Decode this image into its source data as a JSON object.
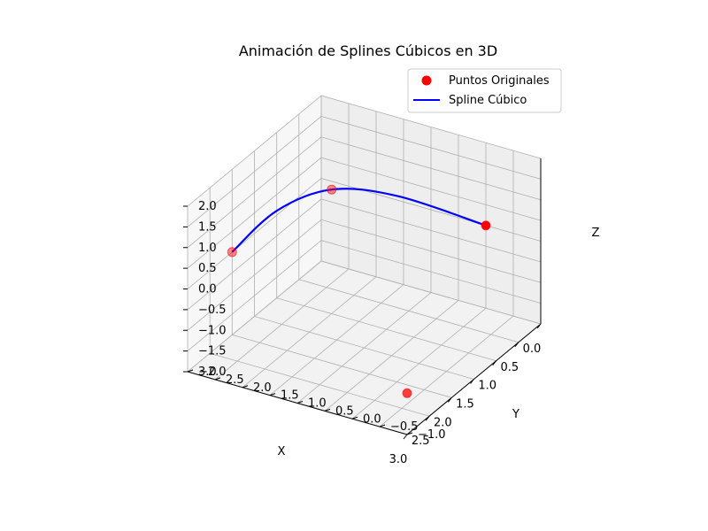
{
  "chart_data": {
    "type": "scatter3d",
    "title": "Animación de Splines Cúbicos en 3D",
    "xlabel": "X",
    "ylabel": "Y",
    "zlabel": "Z",
    "xlim": [
      0.0,
      3.0
    ],
    "ylim": [
      -1.0,
      3.0
    ],
    "zlim": [
      -2.0,
      2.0
    ],
    "xticks": [
      "0.0",
      "0.5",
      "1.0",
      "1.5",
      "2.0",
      "2.5",
      "3.0"
    ],
    "yticks": [
      "−1.0",
      "−0.5",
      "0.0",
      "0.5",
      "1.0",
      "1.5",
      "2.0",
      "2.5",
      "3.0"
    ],
    "zticks": [
      "−2.0",
      "−1.5",
      "−1.0",
      "−0.5",
      "0.0",
      "0.5",
      "1.0",
      "1.5",
      "2.0"
    ],
    "grid": true,
    "legend_position": "top-right",
    "series": [
      {
        "name": "Puntos Originales",
        "kind": "scatter",
        "color": "#ff0000",
        "points": [
          {
            "x": 0,
            "y": 0,
            "z": 0
          },
          {
            "x": 1,
            "y": 2,
            "z": 1
          },
          {
            "x": 2,
            "y": 3,
            "z": 0
          },
          {
            "x": 3,
            "y": -1,
            "z": -1
          }
        ]
      },
      {
        "name": "Spline Cúbico",
        "kind": "line",
        "color": "#0000ff",
        "description_points": [
          {
            "x": 0.0,
            "y": 0.0,
            "z": 0.0
          },
          {
            "x": 0.5,
            "y": 1.2,
            "z": 0.7
          },
          {
            "x": 1.0,
            "y": 2.0,
            "z": 1.0
          },
          {
            "x": 1.5,
            "y": 2.6,
            "z": 0.7
          },
          {
            "x": 2.0,
            "y": 3.0,
            "z": 0.0
          }
        ]
      }
    ]
  }
}
